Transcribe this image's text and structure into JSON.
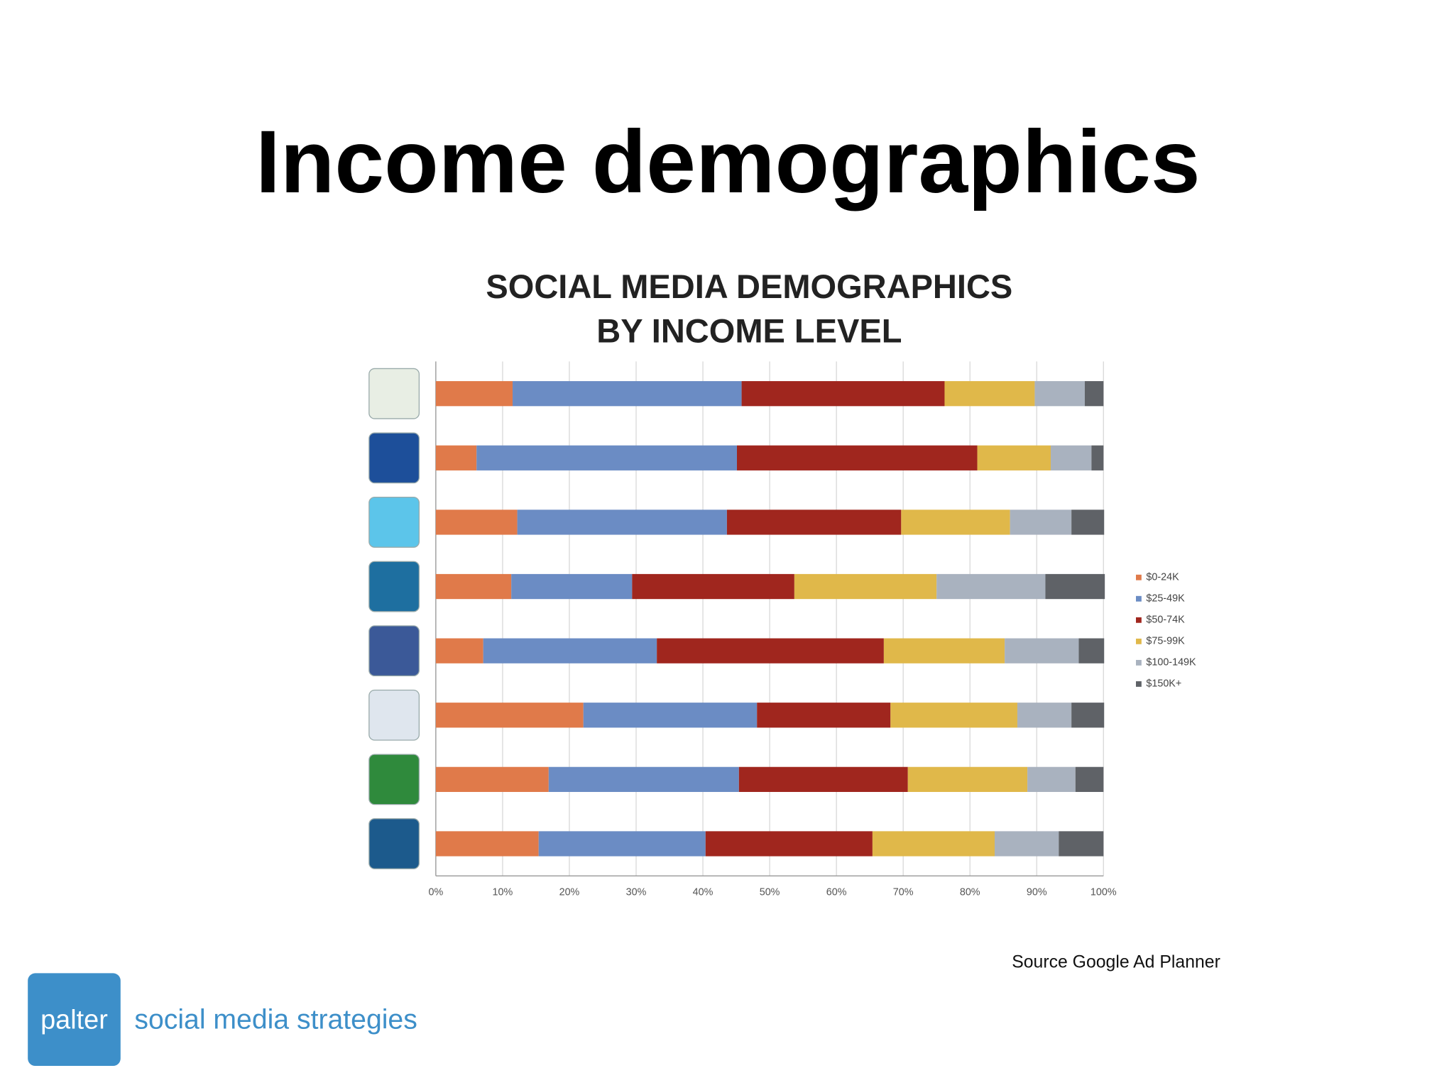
{
  "slide": {
    "title": "Income demographics",
    "source": "Source Google Ad Planner",
    "logo": {
      "mark": "palter",
      "tagline": "social media strategies"
    }
  },
  "chart_data": {
    "type": "stacked-bar-horizontal",
    "title": [
      "SOCIAL MEDIA DEMOGRAPHICS",
      "BY INCOME LEVEL"
    ],
    "categories": [
      null,
      null,
      null,
      null,
      null,
      null,
      null,
      null
    ],
    "series": [
      {
        "name": "$0-24K",
        "color": "#e07a4a",
        "values": [
          11.5,
          6.1,
          12.2,
          11.3,
          7.1,
          22.1,
          16.9,
          15.4
        ]
      },
      {
        "name": "$25-49K",
        "color": "#6b8cc4",
        "values": [
          34.3,
          39.0,
          31.4,
          18.1,
          26.0,
          26.0,
          28.5,
          25.0
        ]
      },
      {
        "name": "$50-74K",
        "color": "#a0261e",
        "values": [
          30.4,
          36.0,
          26.1,
          24.3,
          34.0,
          20.0,
          25.3,
          25.0
        ]
      },
      {
        "name": "$75-99K",
        "color": "#e0b84a",
        "values": [
          13.5,
          11.0,
          16.3,
          21.3,
          18.1,
          19.0,
          17.9,
          18.3
        ]
      },
      {
        "name": "$100-149K",
        "color": "#a9b2bf",
        "values": [
          7.5,
          6.1,
          9.2,
          16.3,
          11.1,
          8.1,
          7.2,
          9.6
        ]
      },
      {
        "name": "$150K+",
        "color": "#5f6267",
        "values": [
          2.8,
          1.8,
          4.9,
          8.9,
          3.8,
          4.9,
          4.2,
          6.7
        ]
      }
    ],
    "xlim": [
      0,
      100
    ],
    "xticks": [
      {
        "value": 0,
        "label": "0%"
      },
      {
        "value": 10,
        "label": "10%"
      },
      {
        "value": 20,
        "label": "20%"
      },
      {
        "value": 30,
        "label": "30%"
      },
      {
        "value": 40,
        "label": "40%"
      },
      {
        "value": 50,
        "label": "50%"
      },
      {
        "value": 60,
        "label": "60%"
      },
      {
        "value": 70,
        "label": "70%"
      },
      {
        "value": 80,
        "label": "80%"
      },
      {
        "value": 90,
        "label": "90%"
      },
      {
        "value": 100,
        "label": "100%"
      }
    ],
    "grid": true,
    "legend": "right"
  }
}
